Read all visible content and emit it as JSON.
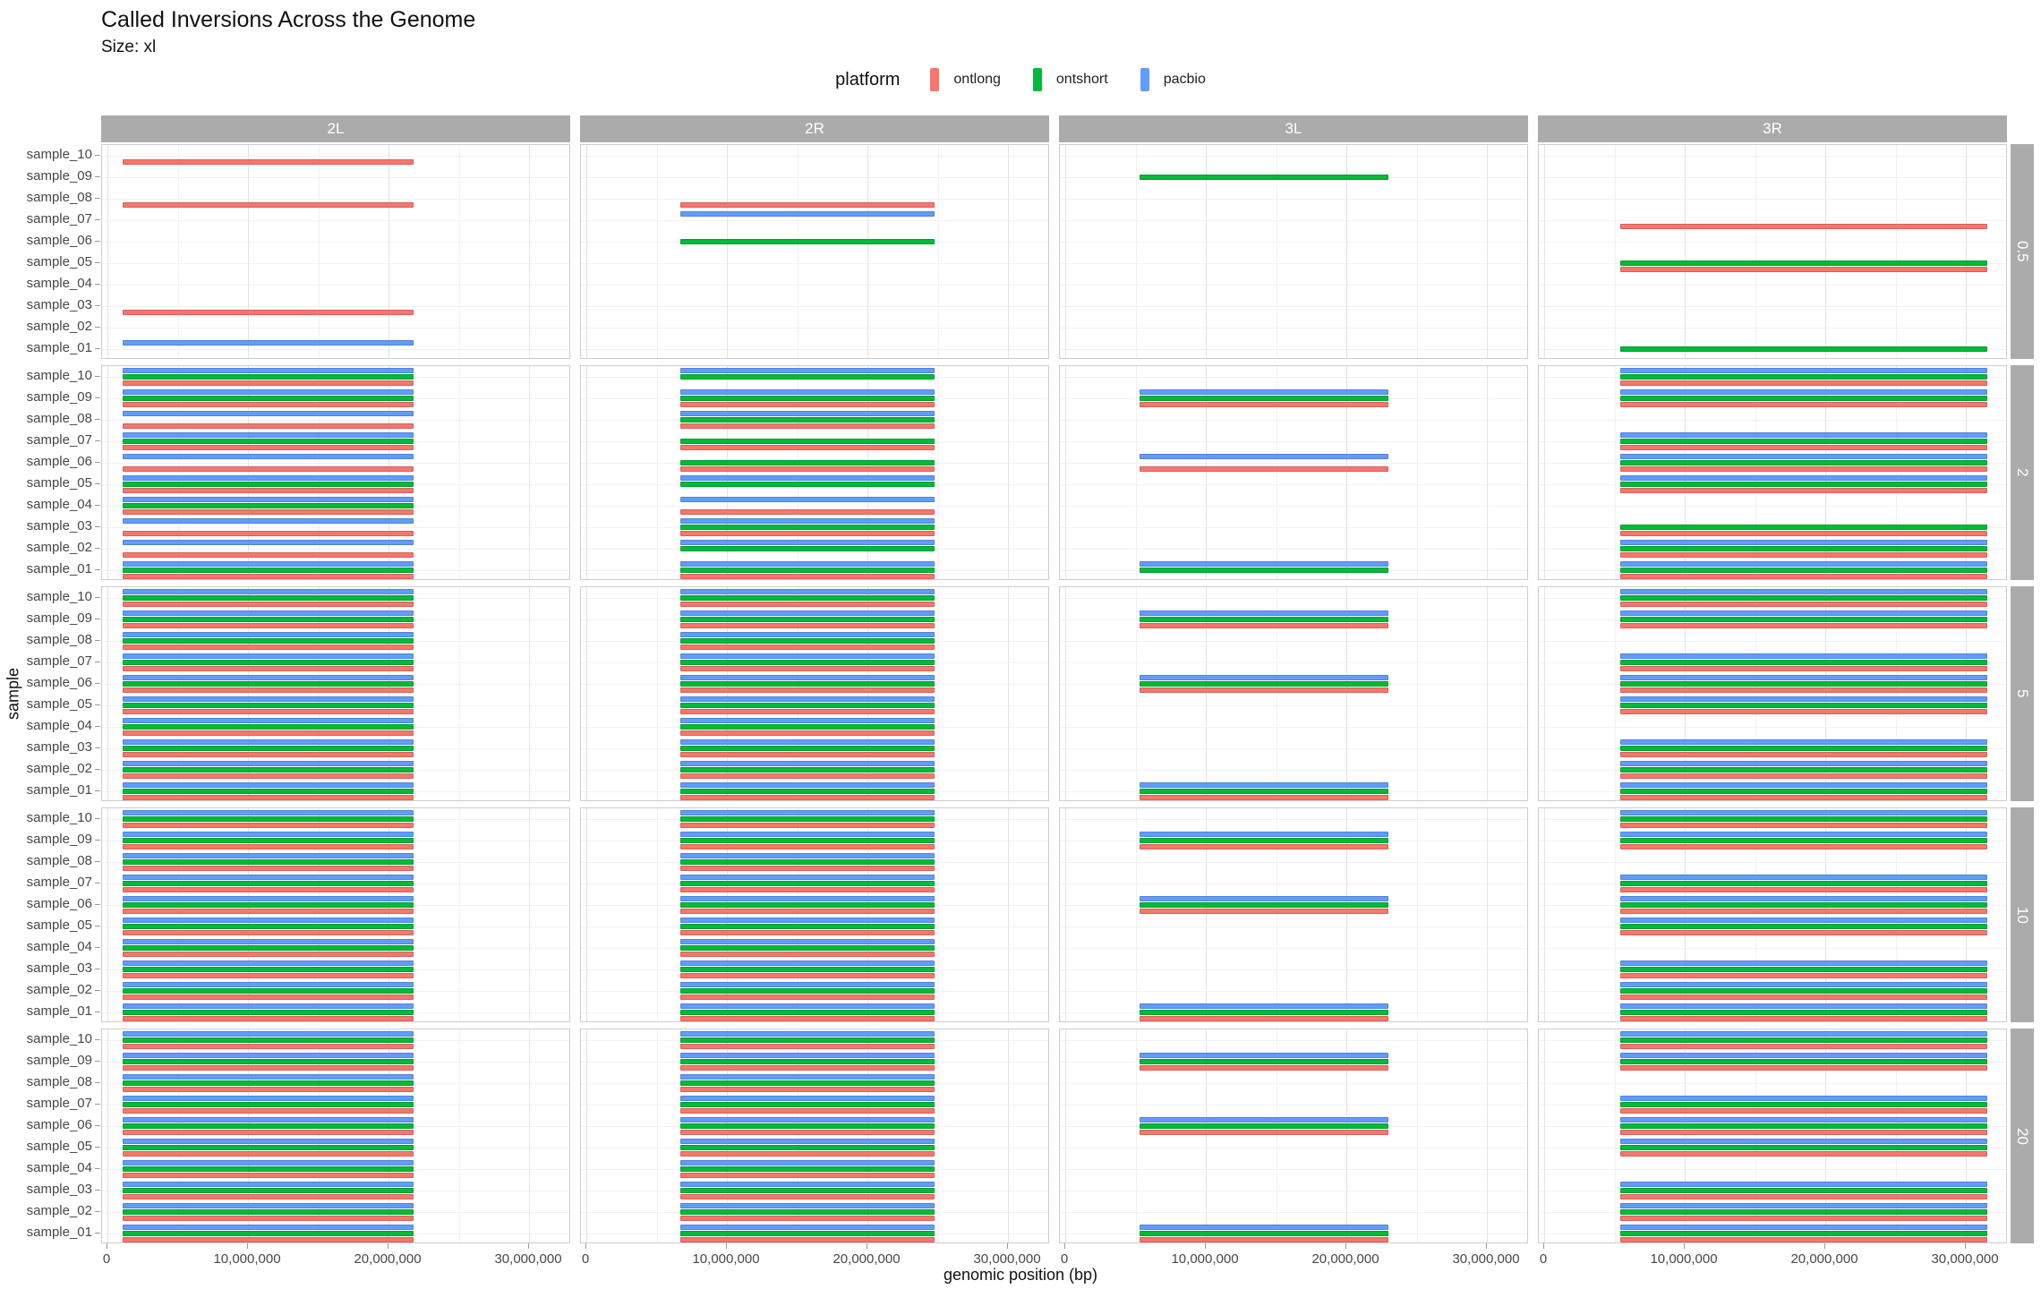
{
  "header": {
    "title": "Called Inversions Across the Genome",
    "subtitle": "Size: xl"
  },
  "legend": {
    "title": "platform",
    "entries": [
      {
        "label": "ontlong",
        "color": "#F8766D"
      },
      {
        "label": "ontshort",
        "color": "#00BA38"
      },
      {
        "label": "pacbio",
        "color": "#619CFF"
      }
    ]
  },
  "colors": {
    "strip_bg": "#ABABAB",
    "strip_text": "#FFFFFF",
    "panel_border": "#CDCDCD",
    "grid_major": "#E3E3E3",
    "grid_minor": "#F1F1F1",
    "tick_text": "#474747"
  },
  "chart_data": {
    "type": "bar",
    "title": "Called Inversions Across the Genome",
    "subtitle": "Size: xl",
    "xlabel": "genomic position (bp)",
    "ylabel": "sample",
    "legend_position": "top",
    "grid": true,
    "x_max": 33000000,
    "x_ticks": [
      {
        "value": 0,
        "label": "0"
      },
      {
        "value": 10000000,
        "label": "10,000,000"
      },
      {
        "value": 20000000,
        "label": "20,000,000"
      },
      {
        "value": 30000000,
        "label": "30,000,000"
      }
    ],
    "x_minor_ticks": [
      5000000,
      15000000,
      25000000
    ],
    "col_facets": [
      "2L",
      "2R",
      "3L",
      "3R"
    ],
    "row_facets": [
      "0.5",
      "2",
      "5",
      "10",
      "20"
    ],
    "samples": [
      "sample_10",
      "sample_09",
      "sample_08",
      "sample_07",
      "sample_06",
      "sample_05",
      "sample_04",
      "sample_03",
      "sample_02",
      "sample_01"
    ],
    "platforms": [
      {
        "key": "pacbio",
        "color": "#619CFF"
      },
      {
        "key": "ontshort",
        "color": "#00BA38"
      },
      {
        "key": "ontlong",
        "color": "#F8766D"
      }
    ],
    "extents_bp": {
      "2L": [
        1100000,
        21800000
      ],
      "2R": [
        6700000,
        24800000
      ],
      "3L": [
        5300000,
        23000000
      ],
      "3R": [
        5400000,
        31500000
      ]
    },
    "cells": {
      "0.5": {
        "2L": {
          "sample_10": [
            "ontlong"
          ],
          "sample_08": [
            "ontlong"
          ],
          "sample_03": [
            "ontlong"
          ],
          "sample_01": [
            "pacbio"
          ]
        },
        "2R": {
          "sample_08": [
            "ontlong"
          ],
          "sample_07": [
            "pacbio"
          ],
          "sample_06": [
            "ontshort"
          ]
        },
        "3L": {
          "sample_09": [
            "ontshort"
          ]
        },
        "3R": {
          "sample_07": [
            "ontlong"
          ],
          "sample_05": [
            "ontshort",
            "ontlong"
          ],
          "sample_01": [
            "ontshort"
          ]
        }
      },
      "2": {
        "2L": {
          "sample_10": [
            "pacbio",
            "ontshort",
            "ontlong"
          ],
          "sample_09": [
            "pacbio",
            "ontshort",
            "ontlong"
          ],
          "sample_08": [
            "pacbio",
            "ontlong"
          ],
          "sample_07": [
            "pacbio",
            "ontshort",
            "ontlong"
          ],
          "sample_06": [
            "pacbio",
            "ontlong"
          ],
          "sample_05": [
            "pacbio",
            "ontshort",
            "ontlong"
          ],
          "sample_04": [
            "pacbio",
            "ontshort",
            "ontlong"
          ],
          "sample_03": [
            "pacbio",
            "ontlong"
          ],
          "sample_02": [
            "pacbio",
            "ontlong"
          ],
          "sample_01": [
            "pacbio",
            "ontshort",
            "ontlong"
          ]
        },
        "2R": {
          "sample_10": [
            "pacbio",
            "ontshort"
          ],
          "sample_09": [
            "pacbio",
            "ontshort",
            "ontlong"
          ],
          "sample_08": [
            "pacbio",
            "ontshort",
            "ontlong"
          ],
          "sample_07": [
            "ontshort",
            "ontlong"
          ],
          "sample_06": [
            "ontshort",
            "ontlong"
          ],
          "sample_05": [
            "pacbio",
            "ontshort"
          ],
          "sample_04": [
            "pacbio",
            "ontlong"
          ],
          "sample_03": [
            "pacbio",
            "ontshort",
            "ontlong"
          ],
          "sample_02": [
            "pacbio",
            "ontshort"
          ],
          "sample_01": [
            "pacbio",
            "ontshort",
            "ontlong"
          ]
        },
        "3L": {
          "sample_09": [
            "pacbio",
            "ontshort",
            "ontlong"
          ],
          "sample_06": [
            "pacbio",
            "ontlong"
          ],
          "sample_01": [
            "pacbio",
            "ontshort"
          ]
        },
        "3R": {
          "sample_10": [
            "pacbio",
            "ontshort",
            "ontlong"
          ],
          "sample_09": [
            "pacbio",
            "ontshort",
            "ontlong"
          ],
          "sample_07": [
            "pacbio",
            "ontshort",
            "ontlong"
          ],
          "sample_06": [
            "pacbio",
            "ontshort",
            "ontlong"
          ],
          "sample_05": [
            "pacbio",
            "ontshort",
            "ontlong"
          ],
          "sample_03": [
            "ontshort",
            "ontlong"
          ],
          "sample_02": [
            "pacbio",
            "ontshort",
            "ontlong"
          ],
          "sample_01": [
            "pacbio",
            "ontshort",
            "ontlong"
          ]
        }
      },
      "5": {
        "2L": "all",
        "2R": "all",
        "3L": {
          "sample_09": [
            "pacbio",
            "ontshort",
            "ontlong"
          ],
          "sample_06": [
            "pacbio",
            "ontshort",
            "ontlong"
          ],
          "sample_01": [
            "pacbio",
            "ontshort",
            "ontlong"
          ]
        },
        "3R": {
          "sample_10": [
            "pacbio",
            "ontshort",
            "ontlong"
          ],
          "sample_09": [
            "pacbio",
            "ontshort",
            "ontlong"
          ],
          "sample_07": [
            "pacbio",
            "ontshort",
            "ontlong"
          ],
          "sample_06": [
            "pacbio",
            "ontshort",
            "ontlong"
          ],
          "sample_05": [
            "pacbio",
            "ontshort",
            "ontlong"
          ],
          "sample_03": [
            "pacbio",
            "ontshort",
            "ontlong"
          ],
          "sample_02": [
            "pacbio",
            "ontshort",
            "ontlong"
          ],
          "sample_01": [
            "pacbio",
            "ontshort",
            "ontlong"
          ]
        }
      },
      "10": {
        "2L": "all",
        "2R": "all",
        "3L": {
          "sample_09": [
            "pacbio",
            "ontshort",
            "ontlong"
          ],
          "sample_06": [
            "pacbio",
            "ontshort",
            "ontlong"
          ],
          "sample_01": [
            "pacbio",
            "ontshort",
            "ontlong"
          ]
        },
        "3R": {
          "sample_10": [
            "pacbio",
            "ontshort",
            "ontlong"
          ],
          "sample_09": [
            "pacbio",
            "ontshort",
            "ontlong"
          ],
          "sample_07": [
            "pacbio",
            "ontshort",
            "ontlong"
          ],
          "sample_06": [
            "pacbio",
            "ontshort",
            "ontlong"
          ],
          "sample_05": [
            "pacbio",
            "ontshort",
            "ontlong"
          ],
          "sample_03": [
            "pacbio",
            "ontshort",
            "ontlong"
          ],
          "sample_02": [
            "pacbio",
            "ontshort",
            "ontlong"
          ],
          "sample_01": [
            "pacbio",
            "ontshort",
            "ontlong"
          ]
        }
      },
      "20": {
        "2L": "all",
        "2R": "all",
        "3L": {
          "sample_09": [
            "pacbio",
            "ontshort",
            "ontlong"
          ],
          "sample_06": [
            "pacbio",
            "ontshort",
            "ontlong"
          ],
          "sample_01": [
            "pacbio",
            "ontshort",
            "ontlong"
          ]
        },
        "3R": {
          "sample_10": [
            "pacbio",
            "ontshort",
            "ontlong"
          ],
          "sample_09": [
            "pacbio",
            "ontshort",
            "ontlong"
          ],
          "sample_07": [
            "pacbio",
            "ontshort",
            "ontlong"
          ],
          "sample_06": [
            "pacbio",
            "ontshort",
            "ontlong"
          ],
          "sample_05": [
            "pacbio",
            "ontshort",
            "ontlong"
          ],
          "sample_03": [
            "pacbio",
            "ontshort",
            "ontlong"
          ],
          "sample_02": [
            "pacbio",
            "ontshort",
            "ontlong"
          ],
          "sample_01": [
            "pacbio",
            "ontshort",
            "ontlong"
          ]
        }
      }
    }
  }
}
